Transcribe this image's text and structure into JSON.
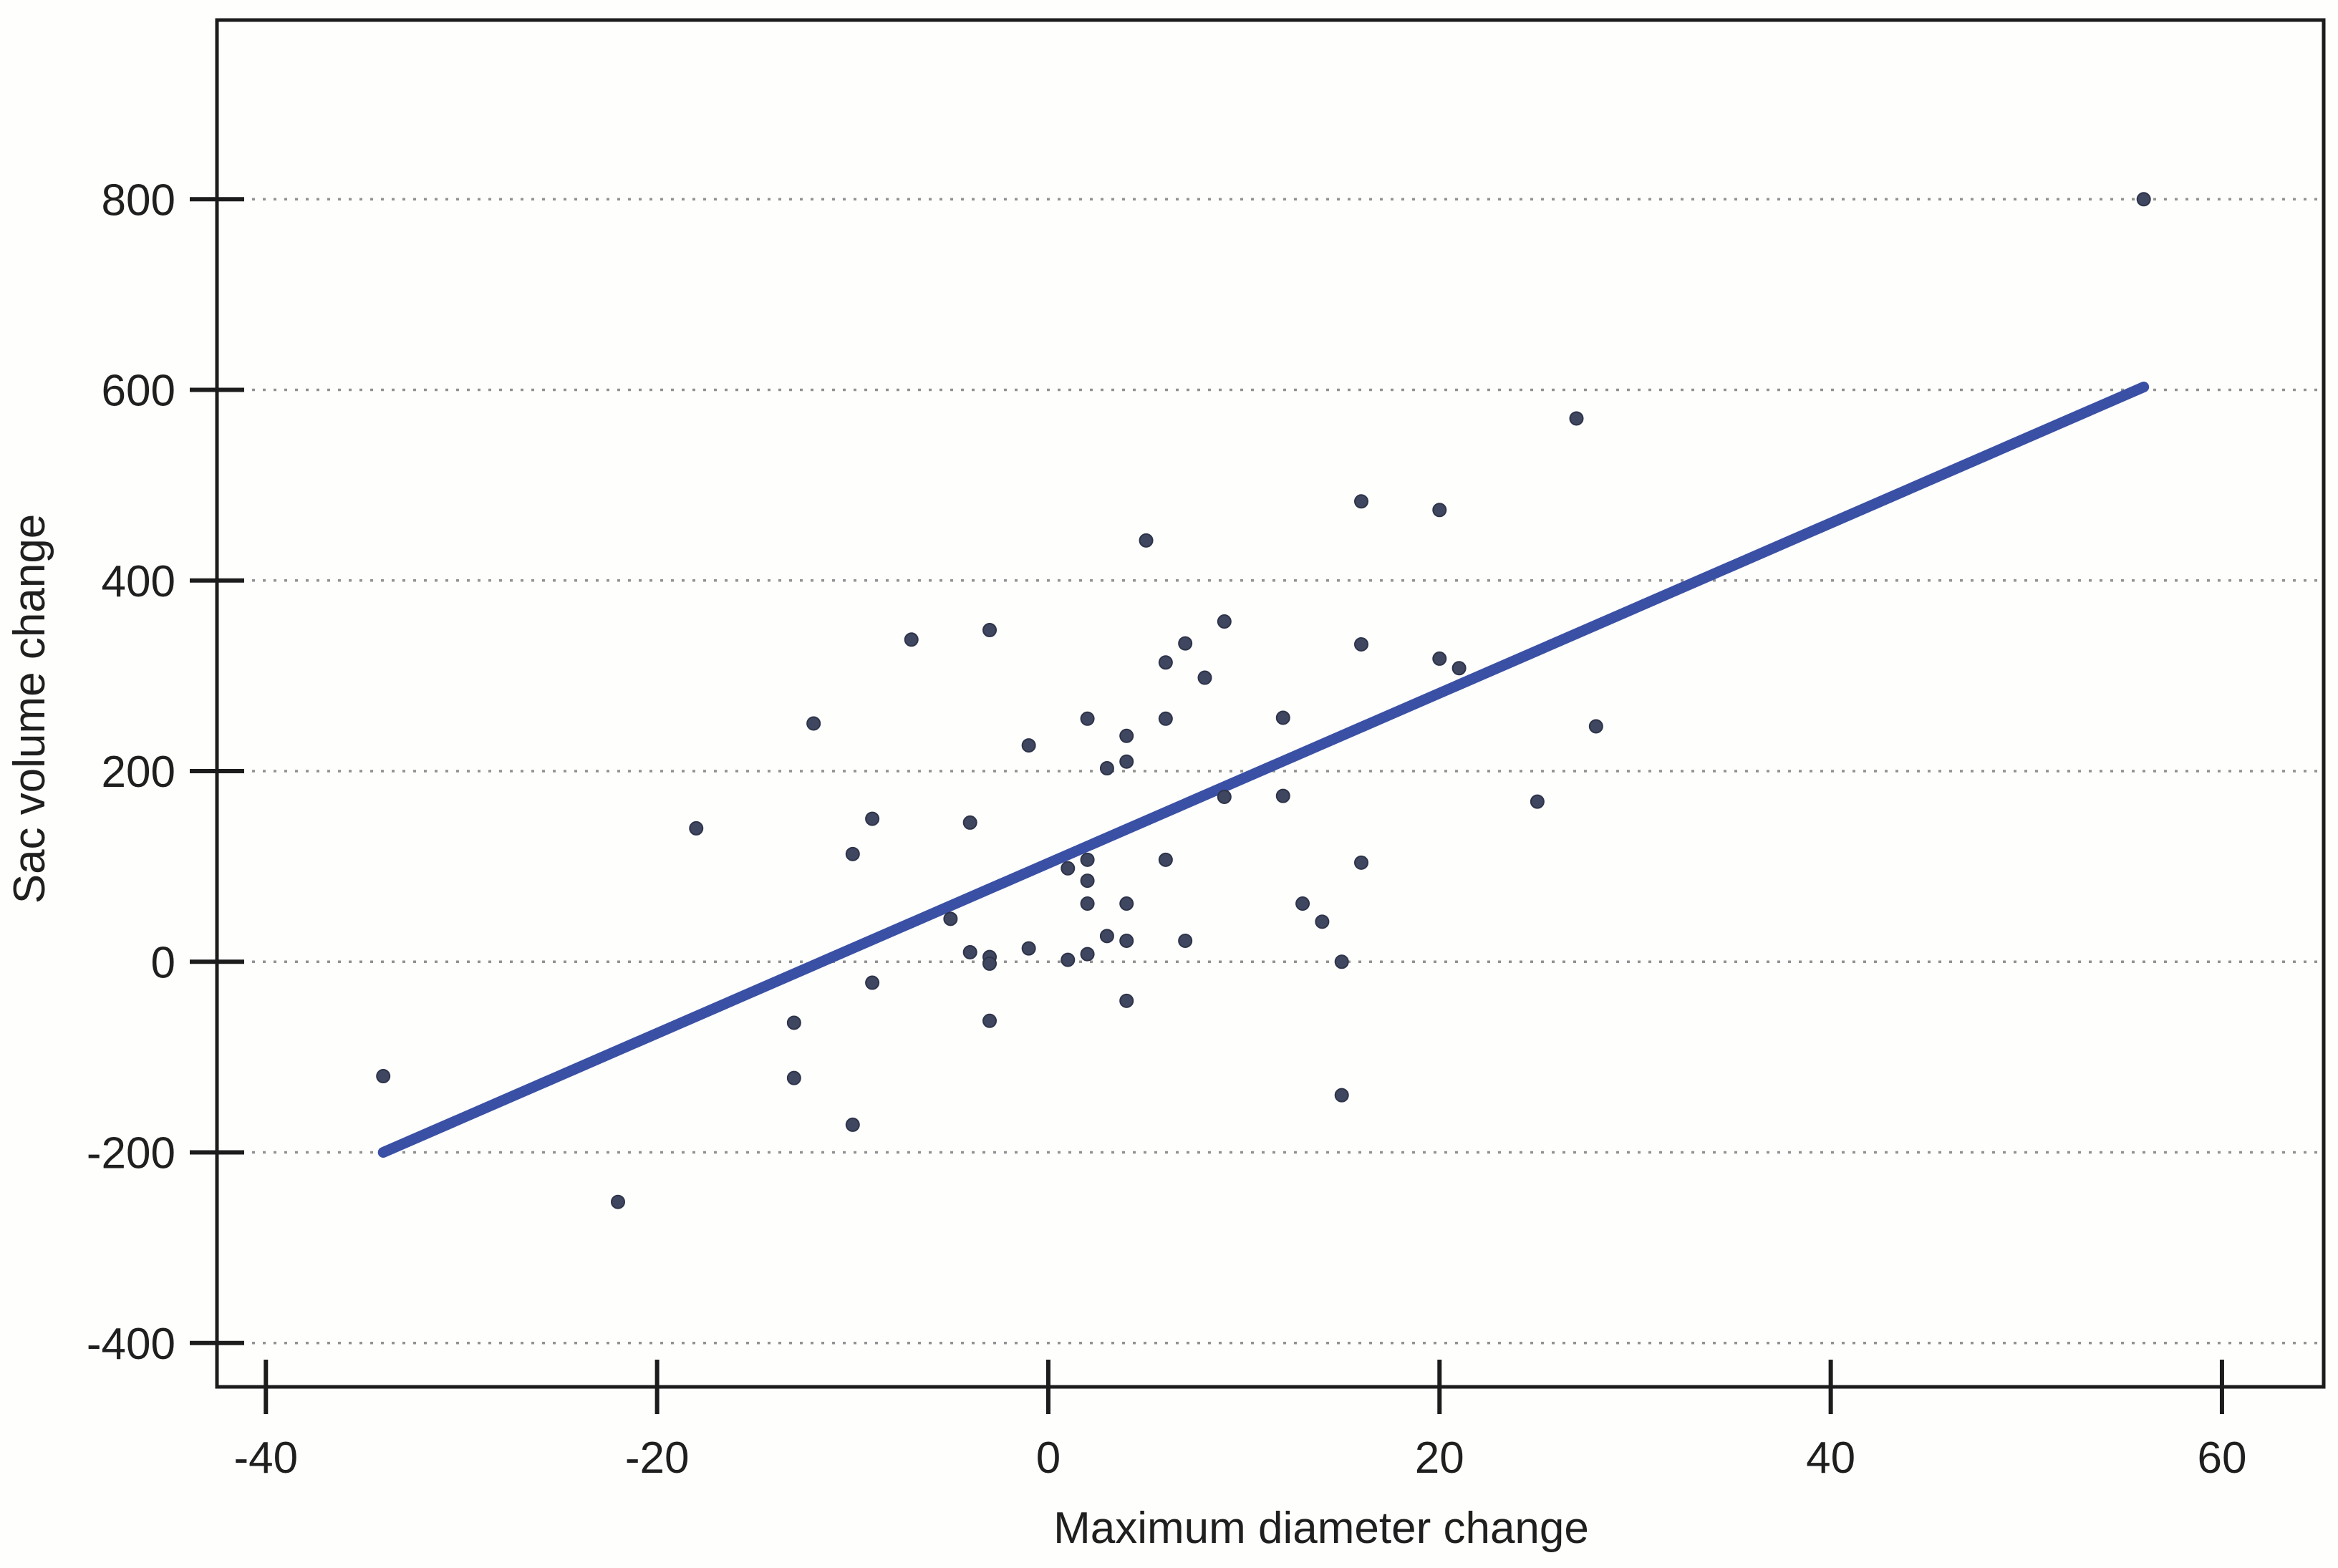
{
  "chart_data": {
    "type": "scatter",
    "title": "",
    "xlabel": "Maximum diameter change",
    "ylabel": "Sac volume change",
    "xlim": [
      -42.5,
      65.2
    ],
    "ylim": [
      -446,
      988
    ],
    "x_ticks": [
      -40,
      -20,
      0,
      20,
      40,
      60
    ],
    "y_ticks": [
      800,
      600,
      400,
      200,
      0,
      -200,
      -400
    ],
    "grid": "horizontal-dotted",
    "legend_position": "none",
    "series": [
      {
        "name": "observations",
        "type": "scatter",
        "points": [
          [
            -34,
            -120
          ],
          [
            -22,
            -252
          ],
          [
            -18,
            140
          ],
          [
            -13,
            -64
          ],
          [
            -13,
            -122
          ],
          [
            -10,
            -171
          ],
          [
            -12,
            250
          ],
          [
            -10,
            113
          ],
          [
            -9,
            150
          ],
          [
            -9,
            -22
          ],
          [
            -7,
            338
          ],
          [
            -5,
            45
          ],
          [
            -4,
            146
          ],
          [
            -4,
            10
          ],
          [
            -3,
            5
          ],
          [
            -3,
            -2
          ],
          [
            -3,
            -62
          ],
          [
            -3,
            348
          ],
          [
            -1,
            227
          ],
          [
            -1,
            14
          ],
          [
            1,
            2
          ],
          [
            2,
            8
          ],
          [
            1,
            98
          ],
          [
            2,
            107
          ],
          [
            2,
            85
          ],
          [
            2,
            61
          ],
          [
            4,
            61
          ],
          [
            6,
            107
          ],
          [
            3,
            203
          ],
          [
            4,
            210
          ],
          [
            2,
            255
          ],
          [
            4,
            237
          ],
          [
            6,
            255
          ],
          [
            5,
            442
          ],
          [
            3,
            27
          ],
          [
            4,
            22
          ],
          [
            7,
            22
          ],
          [
            4,
            -41
          ],
          [
            6,
            314
          ],
          [
            7,
            334
          ],
          [
            8,
            298
          ],
          [
            9,
            357
          ],
          [
            9,
            173
          ],
          [
            12,
            174
          ],
          [
            12,
            256
          ],
          [
            13,
            61
          ],
          [
            14,
            42
          ],
          [
            15,
            0
          ],
          [
            15,
            -140
          ],
          [
            16,
            104
          ],
          [
            16,
            333
          ],
          [
            16,
            483
          ],
          [
            20,
            474
          ],
          [
            20,
            318
          ],
          [
            21,
            308
          ],
          [
            25,
            168
          ],
          [
            27,
            570
          ],
          [
            28,
            247
          ],
          [
            56,
            800
          ]
        ]
      },
      {
        "name": "regression-line",
        "type": "line",
        "points": [
          [
            -34,
            -200
          ],
          [
            56,
            603
          ]
        ]
      }
    ],
    "colors": {
      "point": "#3f4660",
      "line": "#3a50a5",
      "grid": "#929292",
      "frame": "#1c1c1c",
      "background": "#fefefc",
      "text": "#1f1f1f"
    }
  }
}
